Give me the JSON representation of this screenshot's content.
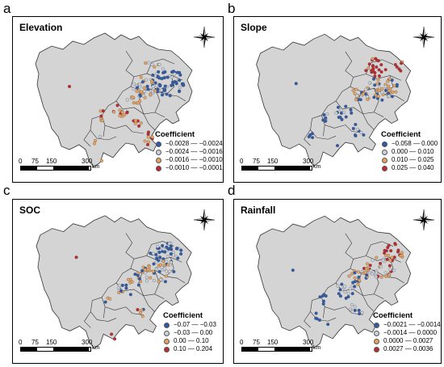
{
  "figure": {
    "panels": [
      {
        "letter": "a",
        "title": "Elevation",
        "legend_title": "Coefficient",
        "legend": [
          {
            "label": "−0.0028 — −0.0024",
            "color": "#2f5aa8"
          },
          {
            "label": "−0.0024 — −0.0016",
            "color": "#c9d1dc"
          },
          {
            "label": "−0.0016 — −0.0010",
            "color": "#e8a25f"
          },
          {
            "label": "−0.0010 — −0.0001",
            "color": "#c0282d"
          }
        ]
      },
      {
        "letter": "b",
        "title": "Slope",
        "legend_title": "Coefficient",
        "legend": [
          {
            "label": "−0.058 — 0.000",
            "color": "#2f5aa8"
          },
          {
            "label": "0.000 — 0.010",
            "color": "#c9d1dc"
          },
          {
            "label": "0.010 — 0.025",
            "color": "#e8a25f"
          },
          {
            "label": "0.025 — 0.040",
            "color": "#c0282d"
          }
        ]
      },
      {
        "letter": "c",
        "title": "SOC",
        "legend_title": "Coefficient",
        "legend": [
          {
            "label": "−0.07 — −0.03",
            "color": "#2f5aa8"
          },
          {
            "label": "−0.03 — 0.00",
            "color": "#c9d1dc"
          },
          {
            "label": "0.00 — 0.10",
            "color": "#e8a25f"
          },
          {
            "label": "0.10 — 0.204",
            "color": "#c0282d"
          }
        ]
      },
      {
        "letter": "d",
        "title": "Rainfall",
        "legend_title": "Coefficient",
        "legend": [
          {
            "label": "−0.0021 — −0.0014",
            "color": "#2f5aa8"
          },
          {
            "label": "−0.0014 — 0.0000",
            "color": "#c9d1dc"
          },
          {
            "label": "0.0000 — 0.0027",
            "color": "#e8a25f"
          },
          {
            "label": "0.0027 — 0.0036",
            "color": "#c0282d"
          }
        ]
      }
    ],
    "scale": {
      "ticks": [
        "0",
        "75",
        "150",
        "300"
      ],
      "unit": "km"
    },
    "colors": {
      "region_fill": "#d4d4d4",
      "border": "#333333"
    }
  }
}
